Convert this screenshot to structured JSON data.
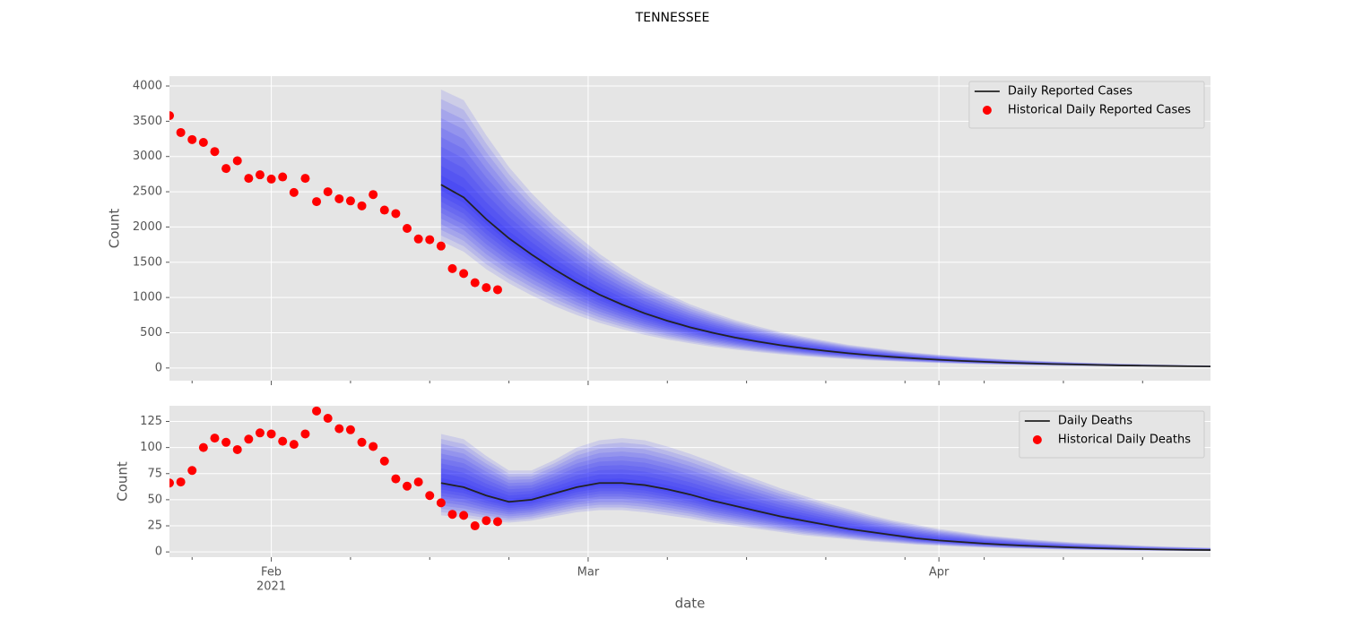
{
  "title": "TENNESSEE",
  "chart_data": [
    {
      "type": "line",
      "ylabel": "Count",
      "xlim": [
        23,
        115
      ],
      "ylim": [
        -180,
        4140
      ],
      "xticks": [
        32,
        60,
        91
      ],
      "xminorticks": [
        25,
        39,
        46,
        53,
        67,
        74,
        81,
        88,
        95,
        102,
        109
      ],
      "yticks": [
        0,
        500,
        1000,
        1500,
        2000,
        2500,
        3000,
        3500,
        4000
      ],
      "grid": true,
      "legend": "upper right",
      "series": [
        {
          "name": "Daily Reported Cases",
          "color": "#222222",
          "band_color": "#0000ff",
          "x": [
            47,
            49,
            51,
            53,
            55,
            57,
            59,
            61,
            63,
            65,
            67,
            69,
            71,
            73,
            75,
            77,
            79,
            81,
            83,
            85,
            87,
            89,
            91,
            93,
            95,
            97,
            99,
            101,
            103,
            105,
            107,
            109,
            111,
            113,
            115
          ],
          "values": [
            2600,
            2420,
            2110,
            1840,
            1610,
            1400,
            1210,
            1040,
            900,
            775,
            670,
            578,
            500,
            432,
            374,
            323,
            280,
            242,
            209,
            181,
            156,
            135,
            117,
            101,
            88,
            76,
            66,
            57,
            50,
            43,
            37,
            33,
            29,
            25,
            22
          ],
          "upper": [
            3950,
            3800,
            3300,
            2850,
            2480,
            2160,
            1880,
            1620,
            1400,
            1210,
            1050,
            905,
            785,
            680,
            590,
            510,
            445,
            385,
            330,
            290,
            250,
            215,
            188,
            163,
            142,
            123,
            107,
            93,
            81,
            70,
            61,
            54,
            47,
            41,
            36
          ],
          "lower": [
            1800,
            1650,
            1400,
            1200,
            1030,
            880,
            750,
            640,
            550,
            470,
            405,
            350,
            300,
            260,
            225,
            195,
            168,
            145,
            125,
            108,
            94,
            81,
            70,
            60,
            52,
            45,
            39,
            34,
            30,
            26,
            22,
            20,
            18,
            15,
            13
          ]
        },
        {
          "name": "Historical Daily Reported Cases",
          "type": "scatter",
          "color": "#ff0000",
          "x": [
            23,
            24,
            25,
            26,
            27,
            28,
            29,
            30,
            31,
            32,
            33,
            34,
            35,
            36,
            37,
            38,
            39,
            40,
            41,
            42,
            43,
            44,
            45,
            46,
            47,
            48,
            49,
            50,
            51,
            52
          ],
          "values": [
            3580,
            3340,
            3240,
            3200,
            3070,
            2830,
            2940,
            2690,
            2740,
            2680,
            2710,
            2490,
            2690,
            2360,
            2500,
            2400,
            2370,
            2300,
            2460,
            2240,
            2190,
            1980,
            1830,
            1820,
            1730,
            1410,
            1340,
            1210,
            1140,
            1110
          ]
        }
      ]
    },
    {
      "type": "line",
      "ylabel": "Count",
      "xlabel": "date",
      "xlim": [
        23,
        115
      ],
      "ylim": [
        -5,
        140
      ],
      "xticks": [
        {
          "value": 32,
          "label": "Feb"
        },
        {
          "value": 60,
          "label": "Mar"
        },
        {
          "value": 91,
          "label": "Apr"
        }
      ],
      "x_year_label": "2021",
      "xminorticks": [
        25,
        39,
        46,
        53,
        67,
        74,
        81,
        88,
        95,
        102,
        109
      ],
      "yticks": [
        0,
        25,
        50,
        75,
        100,
        125
      ],
      "grid": true,
      "legend": "upper right",
      "series": [
        {
          "name": "Daily Deaths",
          "color": "#222222",
          "band_color": "#0000ff",
          "x": [
            47,
            49,
            51,
            53,
            55,
            57,
            59,
            61,
            63,
            65,
            67,
            69,
            71,
            73,
            75,
            77,
            79,
            81,
            83,
            85,
            87,
            89,
            91,
            93,
            95,
            97,
            99,
            101,
            103,
            105,
            107,
            109,
            111,
            113,
            115
          ],
          "values": [
            66,
            62,
            54,
            48,
            50,
            56,
            62,
            66,
            66,
            64,
            60,
            55,
            49,
            44,
            39,
            34,
            30,
            26,
            22,
            19,
            16,
            13,
            11,
            9.5,
            8,
            6.8,
            5.8,
            5,
            4.2,
            3.6,
            3.1,
            2.7,
            2.3,
            2.0,
            1.8
          ],
          "upper": [
            113,
            108,
            92,
            78,
            78,
            88,
            100,
            107,
            109,
            107,
            101,
            94,
            86,
            77,
            69,
            61,
            54,
            47,
            41,
            35,
            30,
            26,
            22,
            19,
            16,
            14,
            12,
            10.5,
            9,
            8,
            7,
            6,
            5.2,
            4.6,
            4
          ],
          "lower": [
            35,
            33,
            30,
            28,
            30,
            34,
            38,
            40,
            40,
            38,
            35,
            32,
            28,
            25,
            22,
            19,
            16,
            14,
            12,
            10,
            8.5,
            7,
            6,
            5,
            4.2,
            3.5,
            3,
            2.5,
            2.1,
            1.8,
            1.5,
            1.3,
            1.1,
            0.9,
            0.8
          ]
        },
        {
          "name": "Historical Daily Deaths",
          "type": "scatter",
          "color": "#ff0000",
          "x": [
            23,
            24,
            25,
            26,
            27,
            28,
            29,
            30,
            31,
            32,
            33,
            34,
            35,
            36,
            37,
            38,
            39,
            40,
            41,
            42,
            43,
            44,
            45,
            46,
            47,
            48,
            49,
            50,
            51,
            52
          ],
          "values": [
            66,
            67,
            78,
            100,
            109,
            105,
            98,
            108,
            114,
            113,
            106,
            103,
            113,
            135,
            128,
            118,
            117,
            105,
            101,
            87,
            70,
            63,
            67,
            54,
            47,
            36,
            35,
            25,
            30,
            29
          ]
        }
      ]
    }
  ]
}
